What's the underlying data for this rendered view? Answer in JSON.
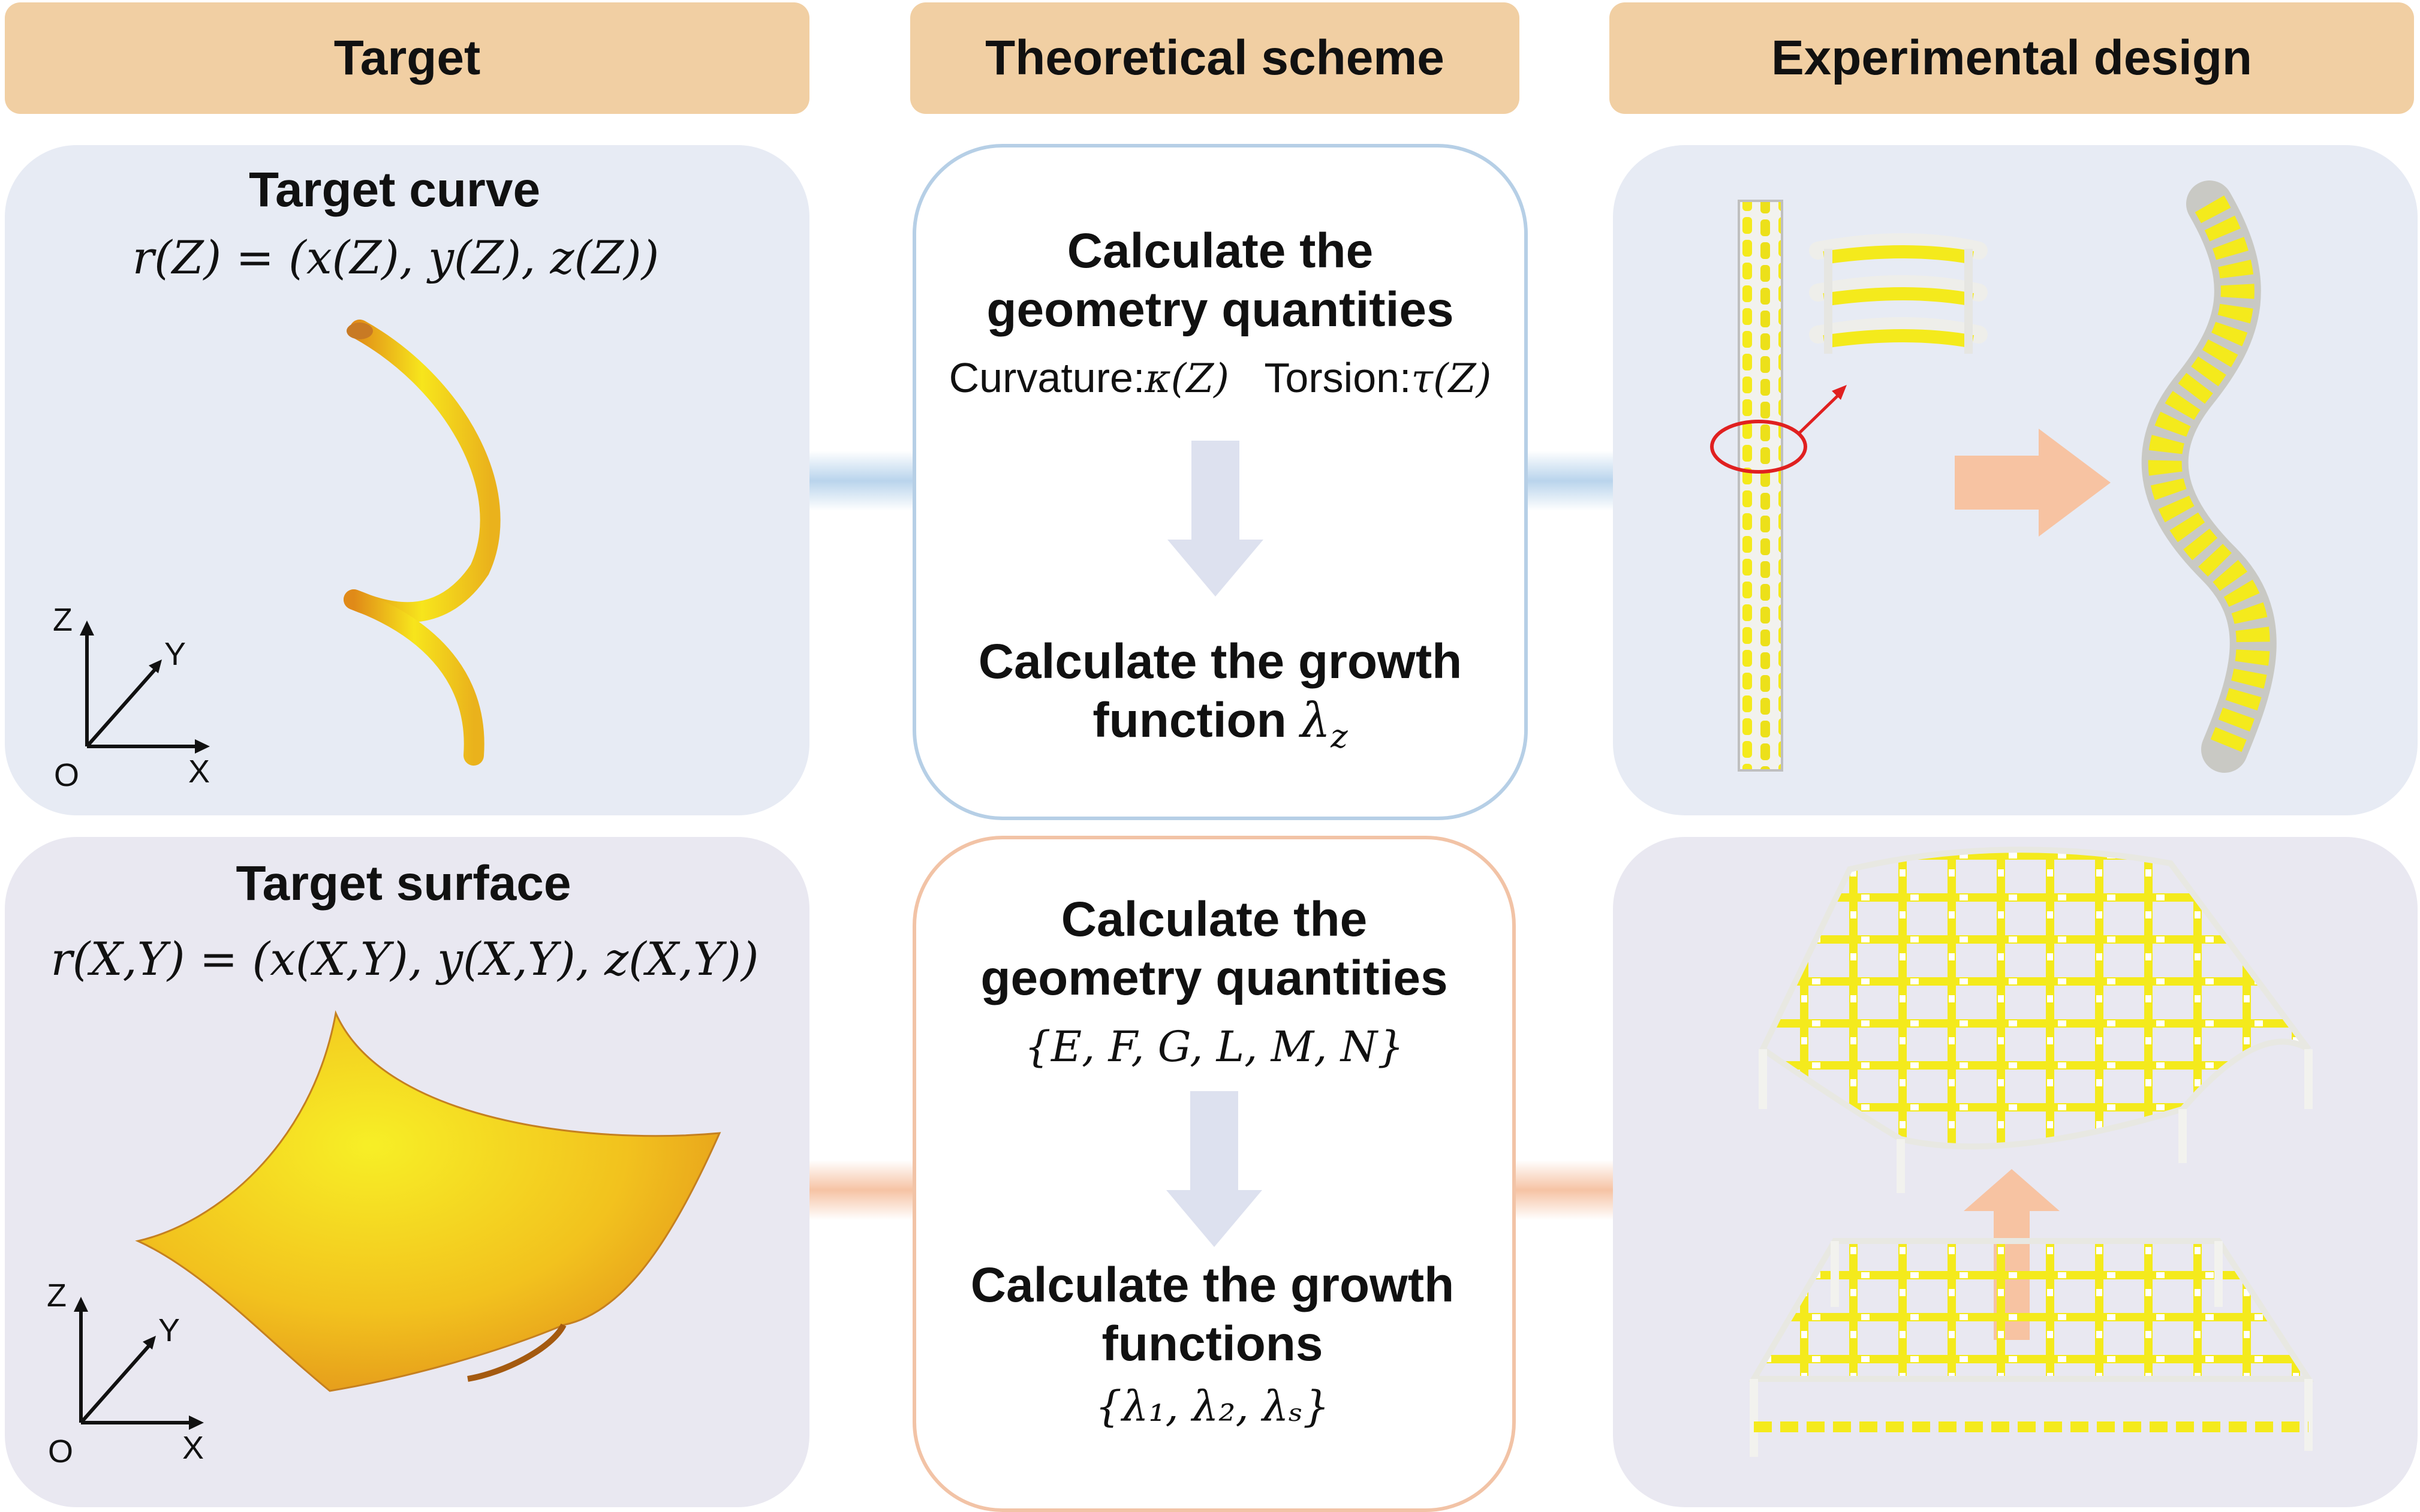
{
  "headers": {
    "target": "Target",
    "theoretical": "Theoretical scheme",
    "experimental": "Experimental design"
  },
  "curve_row": {
    "target_title": "Target curve",
    "target_equation": "r(Z) = (x(Z), y(Z), z(Z))",
    "axes": {
      "z": "Z",
      "y": "Y",
      "x": "X",
      "origin": "O"
    },
    "scheme_line1": "Calculate the",
    "scheme_line2": "geometry quantities",
    "curvature_label": "Curvature:",
    "curvature_symbol": "κ(Z)",
    "torsion_label": "Torsion:",
    "torsion_symbol": "τ(Z)",
    "growth_line1": "Calculate the growth",
    "growth_line2": "function",
    "growth_symbol": "λ",
    "growth_subscript": "z"
  },
  "surface_row": {
    "target_title": "Target surface",
    "target_equation": "r(X,Y) = (x(X,Y), y(X,Y), z(X,Y))",
    "axes": {
      "z": "Z",
      "y": "Y",
      "x": "X",
      "origin": "O"
    },
    "scheme_line1": "Calculate the",
    "scheme_line2": "geometry quantities",
    "geometry_set": "{E, F, G, L, M, N}",
    "growth_line1": "Calculate the growth",
    "growth_line2": "functions",
    "growth_set": "{λ₁, λ₂, λₛ}"
  },
  "colors": {
    "header_bg": "#f1cfa3",
    "curve_panel_bg": "#e7ebf4",
    "surface_panel_bg": "#e9e8f1",
    "blue_connector": "#b9d4ec",
    "orange_connector": "#f6c3a4",
    "down_arrow": "#dde1ef",
    "growth_arrow": "#f7c3a2",
    "yellow_material": "#f4ea1c",
    "red_highlight": "#e02020"
  }
}
